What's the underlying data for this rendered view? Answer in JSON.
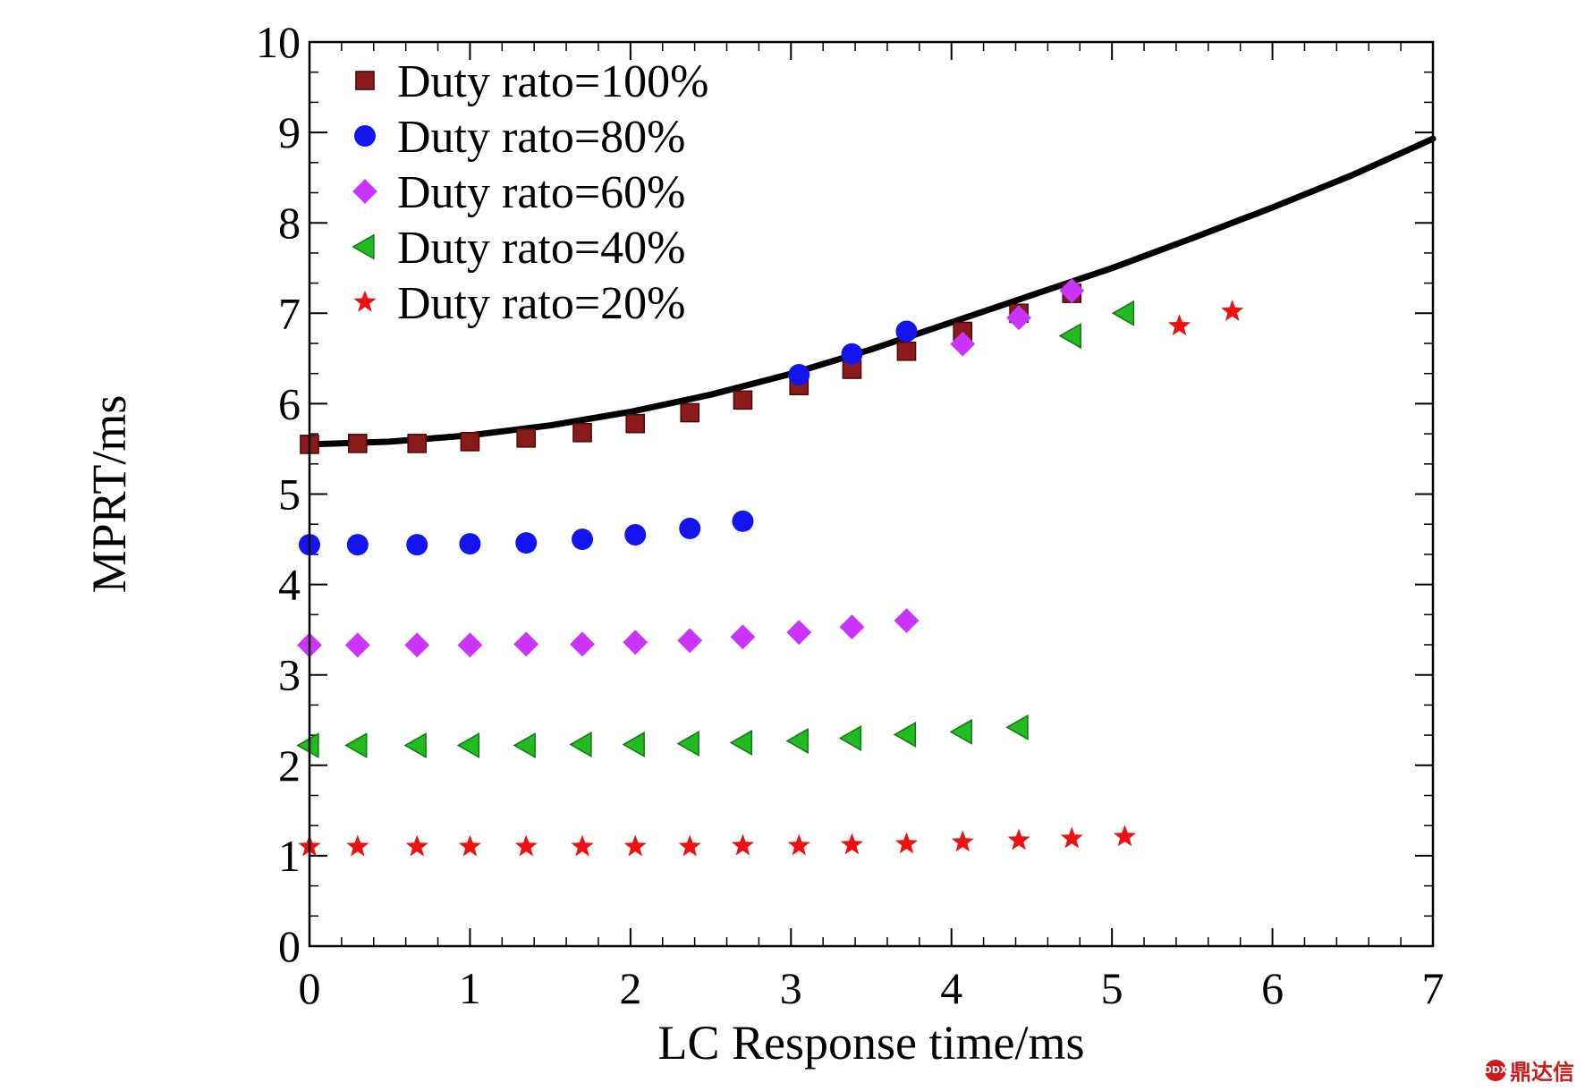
{
  "chart_data": {
    "type": "scatter",
    "xlabel": "LC Response time/ms",
    "ylabel": "MPRT/ms",
    "xlim": [
      0,
      7
    ],
    "ylim": [
      0,
      10
    ],
    "xticks": [
      "0",
      "1",
      "2",
      "3",
      "4",
      "5",
      "6",
      "7"
    ],
    "yticks": [
      "0",
      "1",
      "2",
      "3",
      "4",
      "5",
      "6",
      "7",
      "8",
      "9",
      "10"
    ],
    "grid": false,
    "legend_position": "top-left",
    "series": [
      {
        "name": "Duty rato=100%",
        "marker": "square",
        "color": "#8b1a1a",
        "x": [
          0,
          0.3,
          0.67,
          1.0,
          1.35,
          1.7,
          2.03,
          2.37,
          2.7,
          3.05,
          3.38,
          3.72,
          4.07,
          4.42,
          4.75
        ],
        "y": [
          5.55,
          5.56,
          5.56,
          5.58,
          5.62,
          5.68,
          5.78,
          5.9,
          6.04,
          6.2,
          6.38,
          6.58,
          6.8,
          7.0,
          7.22
        ]
      },
      {
        "name": "Duty rato=80%",
        "marker": "circle",
        "color": "#1414f0",
        "x": [
          0,
          0.3,
          0.67,
          1.0,
          1.35,
          1.7,
          2.03,
          2.37,
          2.7,
          3.05,
          3.38,
          3.72
        ],
        "y": [
          4.44,
          4.44,
          4.44,
          4.45,
          4.46,
          4.5,
          4.55,
          4.62,
          4.7,
          6.32,
          6.55,
          6.8
        ]
      },
      {
        "name": "Duty rato=60%",
        "marker": "diamond",
        "color": "#cc33ff",
        "x": [
          0,
          0.3,
          0.67,
          1.0,
          1.35,
          1.7,
          2.03,
          2.37,
          2.7,
          3.05,
          3.38,
          3.72,
          4.07,
          4.42,
          4.75
        ],
        "y": [
          3.33,
          3.33,
          3.33,
          3.33,
          3.34,
          3.34,
          3.36,
          3.38,
          3.42,
          3.47,
          3.53,
          3.6,
          6.66,
          6.95,
          7.25
        ]
      },
      {
        "name": "Duty rato=40%",
        "marker": "triangle-left",
        "color": "#22bb22",
        "x": [
          0,
          0.3,
          0.67,
          1.0,
          1.35,
          1.7,
          2.03,
          2.37,
          2.7,
          3.05,
          3.38,
          3.72,
          4.07,
          4.42,
          4.75,
          5.08
        ],
        "y": [
          2.22,
          2.22,
          2.22,
          2.22,
          2.22,
          2.23,
          2.23,
          2.24,
          2.25,
          2.27,
          2.3,
          2.34,
          2.37,
          2.42,
          6.75,
          7.0
        ]
      },
      {
        "name": "Duty rato=20%",
        "marker": "star",
        "color": "#ee1111",
        "x": [
          0,
          0.3,
          0.67,
          1.0,
          1.35,
          1.7,
          2.03,
          2.37,
          2.7,
          3.05,
          3.38,
          3.72,
          4.07,
          4.42,
          4.75,
          5.08,
          5.42,
          5.75
        ],
        "y": [
          1.1,
          1.1,
          1.1,
          1.1,
          1.1,
          1.1,
          1.1,
          1.1,
          1.11,
          1.11,
          1.12,
          1.13,
          1.15,
          1.17,
          1.19,
          1.21,
          6.86,
          7.02
        ]
      }
    ],
    "fit_curve": {
      "color": "#000000",
      "x": [
        0,
        0.5,
        1,
        1.5,
        2,
        2.5,
        3,
        3.5,
        4,
        4.5,
        5,
        5.5,
        6,
        6.5,
        7
      ],
      "y": [
        5.55,
        5.58,
        5.65,
        5.76,
        5.91,
        6.1,
        6.33,
        6.6,
        6.9,
        7.2,
        7.5,
        7.83,
        8.17,
        8.53,
        8.93
      ]
    }
  },
  "watermark": {
    "text": "鼎达信",
    "logo_text": "DDX"
  }
}
